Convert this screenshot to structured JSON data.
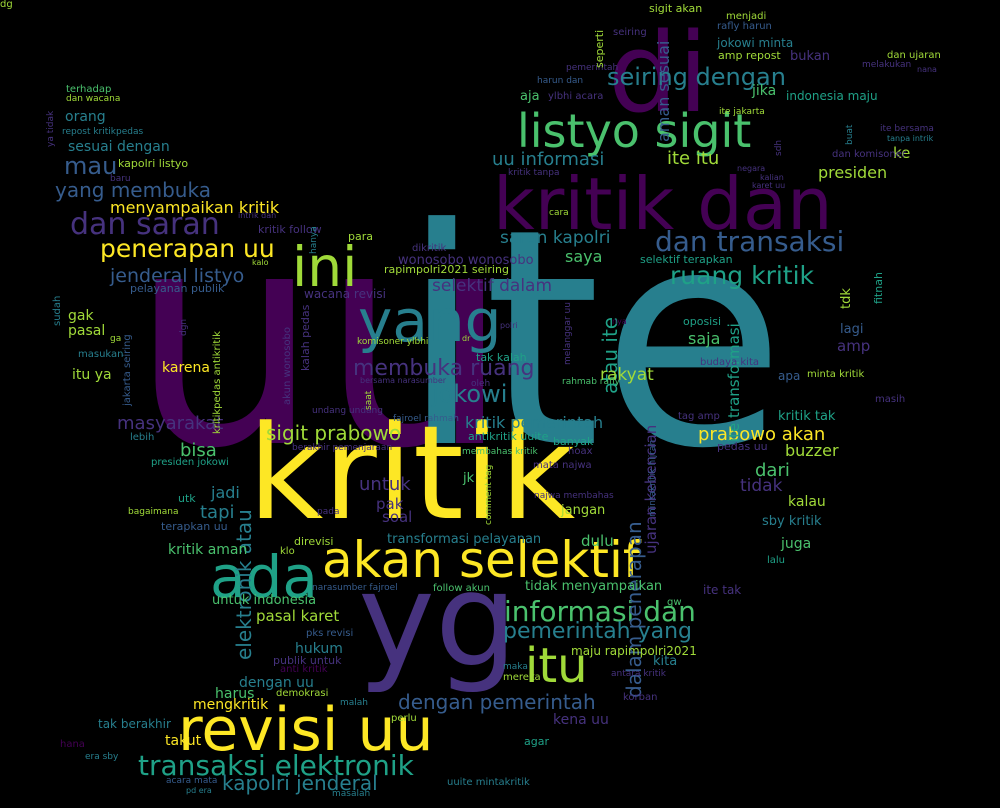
{
  "palette": {
    "purple": "#440154",
    "indigo": "#46327e",
    "blue": "#365c8d",
    "teal": "#277f8e",
    "green": "#1fa187",
    "lightgreen": "#4ac16d",
    "lime": "#a0da39",
    "yellow": "#fde725"
  },
  "words": [
    {
      "text": "uu",
      "color": "purple"
    },
    {
      "text": "ite",
      "color": "teal"
    },
    {
      "text": "kritik",
      "color": "yellow"
    },
    {
      "text": "di",
      "color": "purple"
    },
    {
      "text": "yg",
      "color": "indigo"
    },
    {
      "text": "kritik dan",
      "color": "purple"
    },
    {
      "text": "listyo sigit",
      "color": "lightgreen"
    },
    {
      "text": "akan selektif",
      "color": "yellow"
    },
    {
      "text": "revisi uu",
      "color": "yellow"
    },
    {
      "text": "yang",
      "color": "teal"
    },
    {
      "text": "ada",
      "color": "green"
    },
    {
      "text": "ini",
      "color": "lime"
    },
    {
      "text": "itu",
      "color": "lime"
    },
    {
      "text": "transaksi elektronik",
      "color": "green"
    },
    {
      "text": "informasi dan",
      "color": "lightgreen"
    },
    {
      "text": "dan transaksi",
      "color": "blue"
    },
    {
      "text": "seiring dengan",
      "color": "teal"
    },
    {
      "text": "dan saran",
      "color": "indigo"
    },
    {
      "text": "penerapan uu",
      "color": "yellow"
    },
    {
      "text": "ruang kritik",
      "color": "green"
    },
    {
      "text": "jokowi",
      "color": "teal"
    },
    {
      "text": "sigit prabowo",
      "color": "lime"
    },
    {
      "text": "membuka ruang",
      "color": "indigo"
    },
    {
      "text": "dengan pemerintah",
      "color": "blue"
    },
    {
      "text": "pemerintah yang",
      "color": "teal"
    },
    {
      "text": "kapolri jenderal",
      "color": "teal"
    },
    {
      "text": "jenderal listyo",
      "color": "blue"
    },
    {
      "text": "yang membuka",
      "color": "blue"
    },
    {
      "text": "mau",
      "color": "blue"
    },
    {
      "text": "uu informasi",
      "color": "teal"
    },
    {
      "text": "ite itu",
      "color": "lime"
    },
    {
      "text": "saran kapolri",
      "color": "teal"
    },
    {
      "text": "selektif dalam",
      "color": "indigo"
    },
    {
      "text": "prabowo akan",
      "color": "yellow"
    },
    {
      "text": "masyarakat",
      "color": "indigo"
    },
    {
      "text": "elektronik atau",
      "color": "teal"
    },
    {
      "text": "dalam penerapan",
      "color": "blue"
    },
    {
      "text": "atau ite",
      "color": "green"
    },
    {
      "text": "bisa",
      "color": "lightgreen"
    },
    {
      "text": "dari",
      "color": "lightgreen"
    },
    {
      "text": "tidak",
      "color": "indigo"
    },
    {
      "text": "presiden",
      "color": "lime"
    },
    {
      "text": "menyampaikan kritik",
      "color": "yellow"
    },
    {
      "text": "tapi",
      "color": "teal"
    },
    {
      "text": "jadi",
      "color": "teal"
    },
    {
      "text": "untuk",
      "color": "indigo"
    },
    {
      "text": "kritik pemerintah",
      "color": "teal"
    },
    {
      "text": "rakyat",
      "color": "lime"
    },
    {
      "text": "saja",
      "color": "lightgreen"
    },
    {
      "text": "saya",
      "color": "lightgreen"
    },
    {
      "text": "jika",
      "color": "lightgreen"
    },
    {
      "text": "aja",
      "color": "lightgreen"
    },
    {
      "text": "indonesia maju",
      "color": "green"
    },
    {
      "text": "sesuai dengan",
      "color": "teal"
    },
    {
      "text": "orang",
      "color": "teal"
    },
    {
      "text": "kapolri listyo",
      "color": "lime"
    },
    {
      "text": "pasal karet",
      "color": "lime"
    },
    {
      "text": "hukum",
      "color": "teal"
    },
    {
      "text": "dengan uu",
      "color": "teal"
    },
    {
      "text": "harus",
      "color": "lightgreen"
    },
    {
      "text": "mengkritik",
      "color": "yellow"
    },
    {
      "text": "takut",
      "color": "yellow"
    },
    {
      "text": "tak berakhir",
      "color": "teal"
    },
    {
      "text": "kena uu",
      "color": "indigo"
    },
    {
      "text": "dulu",
      "color": "lightgreen"
    },
    {
      "text": "jangan",
      "color": "lime"
    },
    {
      "text": "kalau",
      "color": "lime"
    },
    {
      "text": "juga",
      "color": "lightgreen"
    },
    {
      "text": "buzzer",
      "color": "lime"
    },
    {
      "text": "sby kritik",
      "color": "teal"
    },
    {
      "text": "karena",
      "color": "yellow"
    },
    {
      "text": "itu ya",
      "color": "lime"
    },
    {
      "text": "pasal",
      "color": "lime"
    },
    {
      "text": "gak",
      "color": "lime"
    },
    {
      "text": "bukan",
      "color": "indigo"
    },
    {
      "text": "jokowi minta",
      "color": "teal"
    },
    {
      "text": "amp repost",
      "color": "lime"
    },
    {
      "text": "ke",
      "color": "lime"
    },
    {
      "text": "kritik aman",
      "color": "lightgreen"
    },
    {
      "text": "untuk indonesia",
      "color": "lightgreen"
    },
    {
      "text": "tidak menyampaikan",
      "color": "lightgreen"
    },
    {
      "text": "transformasi pelayanan",
      "color": "teal"
    },
    {
      "text": "wonosobo wonosobo",
      "color": "indigo"
    },
    {
      "text": "maju rapimpolri2021",
      "color": "lime"
    },
    {
      "text": "kita",
      "color": "teal"
    },
    {
      "text": "amp",
      "color": "indigo"
    },
    {
      "text": "lagi",
      "color": "blue"
    },
    {
      "text": "kritik tak",
      "color": "green"
    },
    {
      "text": "apa",
      "color": "blue"
    },
    {
      "text": "ite tak",
      "color": "indigo"
    },
    {
      "text": "soal",
      "color": "indigo"
    },
    {
      "text": "pak",
      "color": "indigo"
    },
    {
      "text": "jk",
      "color": "lightgreen"
    },
    {
      "text": "ite transformasi",
      "color": "green"
    },
    {
      "text": "ujaran kebencian",
      "color": "indigo"
    },
    {
      "text": "aman sesuai",
      "color": "blue"
    },
    {
      "text": "sigit akan",
      "color": "lime"
    },
    {
      "text": "menjadi",
      "color": "lime"
    },
    {
      "text": "rafly harun",
      "color": "blue"
    },
    {
      "text": "seiring",
      "color": "indigo"
    },
    {
      "text": "dan ujaran",
      "color": "lime"
    },
    {
      "text": "melakukan",
      "color": "indigo"
    },
    {
      "text": "rapimpolri2021 seiring",
      "color": "lime"
    },
    {
      "text": "dikritik",
      "color": "indigo"
    },
    {
      "text": "kritik follow",
      "color": "indigo"
    },
    {
      "text": "para",
      "color": "lime"
    },
    {
      "text": "pelayanan publik",
      "color": "blue"
    },
    {
      "text": "wacana revisi",
      "color": "indigo"
    },
    {
      "text": "selektif terapkan",
      "color": "green"
    },
    {
      "text": "oposisi",
      "color": "green"
    },
    {
      "text": "minta kritik",
      "color": "lime"
    },
    {
      "text": "tag amp",
      "color": "indigo"
    },
    {
      "text": "pedas uu",
      "color": "indigo"
    },
    {
      "text": "budaya kita",
      "color": "indigo"
    },
    {
      "text": "fitnah",
      "color": "green"
    },
    {
      "text": "tdk",
      "color": "lime"
    },
    {
      "text": "masih",
      "color": "indigo"
    },
    {
      "text": "lalu",
      "color": "green"
    },
    {
      "text": "gw",
      "color": "lightgreen"
    },
    {
      "text": "korban",
      "color": "indigo"
    },
    {
      "text": "antara kritik",
      "color": "indigo"
    },
    {
      "text": "mereka",
      "color": "lime"
    },
    {
      "text": "maka",
      "color": "teal"
    },
    {
      "text": "perlu",
      "color": "lime"
    },
    {
      "text": "agar",
      "color": "green"
    },
    {
      "text": "malah",
      "color": "teal"
    },
    {
      "text": "demokrasi",
      "color": "lime"
    },
    {
      "text": "publik untuk",
      "color": "indigo"
    },
    {
      "text": "anti kritik",
      "color": "purple"
    },
    {
      "text": "pks revisi",
      "color": "blue"
    },
    {
      "text": "follow akun",
      "color": "lightgreen"
    },
    {
      "text": "narasumber fajroel",
      "color": "blue"
    },
    {
      "text": "direvisi",
      "color": "lime"
    },
    {
      "text": "klo",
      "color": "lime"
    },
    {
      "text": "pada",
      "color": "indigo"
    },
    {
      "text": "terapkan uu",
      "color": "blue"
    },
    {
      "text": "utk",
      "color": "green"
    },
    {
      "text": "bagaimana",
      "color": "lime"
    },
    {
      "text": "presiden jokowi",
      "color": "green"
    },
    {
      "text": "lebih",
      "color": "teal"
    },
    {
      "text": "berakhir pemenjaraan",
      "color": "indigo"
    },
    {
      "text": "undang undang",
      "color": "indigo"
    },
    {
      "text": "fajroel rahmah",
      "color": "blue"
    },
    {
      "text": "oleh",
      "color": "indigo"
    },
    {
      "text": "rahmab rafly",
      "color": "lightgreen"
    },
    {
      "text": "tak kalah",
      "color": "green"
    },
    {
      "text": "membahas kritik",
      "color": "lightgreen"
    },
    {
      "text": "hoax",
      "color": "indigo"
    },
    {
      "text": "antikritik uuite",
      "color": "green"
    },
    {
      "text": "mata najwa",
      "color": "indigo"
    },
    {
      "text": "najwa membahas",
      "color": "indigo"
    },
    {
      "text": "comment tag",
      "color": "lime"
    },
    {
      "text": "mintakritik hijrah",
      "color": "blue"
    },
    {
      "text": "banyak",
      "color": "green"
    },
    {
      "text": "terhadap",
      "color": "lightgreen"
    },
    {
      "text": "dan wacana",
      "color": "lime"
    },
    {
      "text": "repost kritikpedas",
      "color": "teal"
    },
    {
      "text": "baru",
      "color": "indigo"
    },
    {
      "text": "ya tidak",
      "color": "indigo"
    },
    {
      "text": "intrik dan",
      "color": "indigo"
    },
    {
      "text": "cara",
      "color": "lime"
    },
    {
      "text": "kalo",
      "color": "lime"
    },
    {
      "text": "hanya",
      "color": "teal"
    },
    {
      "text": "sudah",
      "color": "teal"
    },
    {
      "text": "ga",
      "color": "lime"
    },
    {
      "text": "masukan",
      "color": "teal"
    },
    {
      "text": "dgn",
      "color": "indigo"
    },
    {
      "text": "jakarta seiring",
      "color": "blue"
    },
    {
      "text": "kritikpedas antikritik",
      "color": "lime"
    },
    {
      "text": "akun wonosobo",
      "color": "indigo"
    },
    {
      "text": "kalah pedas",
      "color": "indigo"
    },
    {
      "text": "komisoner ylbhi",
      "color": "lime"
    },
    {
      "text": "dr",
      "color": "lime"
    },
    {
      "text": "melanggar uu",
      "color": "indigo"
    },
    {
      "text": "nya",
      "color": "purple"
    },
    {
      "text": "polri",
      "color": "indigo"
    },
    {
      "text": "bersama narasumber",
      "color": "indigo"
    },
    {
      "text": "saat",
      "color": "lime"
    },
    {
      "text": "pemerintah",
      "color": "indigo"
    },
    {
      "text": "harun dan",
      "color": "blue"
    },
    {
      "text": "ylbhi acara",
      "color": "indigo"
    },
    {
      "text": "seperti",
      "color": "lime"
    },
    {
      "text": "kritik tanpa",
      "color": "indigo"
    },
    {
      "text": "ite jakarta",
      "color": "lime"
    },
    {
      "text": "ite bersama",
      "color": "indigo"
    },
    {
      "text": "tanpa intrik",
      "color": "teal"
    },
    {
      "text": "dan komisoner",
      "color": "indigo"
    },
    {
      "text": "buat",
      "color": "teal"
    },
    {
      "text": "sdh",
      "color": "indigo"
    },
    {
      "text": "negara",
      "color": "indigo"
    },
    {
      "text": "kalian",
      "color": "indigo"
    },
    {
      "text": "karet uu",
      "color": "indigo"
    },
    {
      "text": "nana",
      "color": "indigo"
    },
    {
      "text": "hana",
      "color": "purple"
    },
    {
      "text": "era sby",
      "color": "teal"
    },
    {
      "text": "acara mata",
      "color": "blue"
    },
    {
      "text": "pd era",
      "color": "teal"
    },
    {
      "text": "masalah",
      "color": "teal"
    },
    {
      "text": "uuite mintakritik",
      "color": "teal"
    },
    {
      "text": "dg",
      "color": "lime"
    }
  ]
}
